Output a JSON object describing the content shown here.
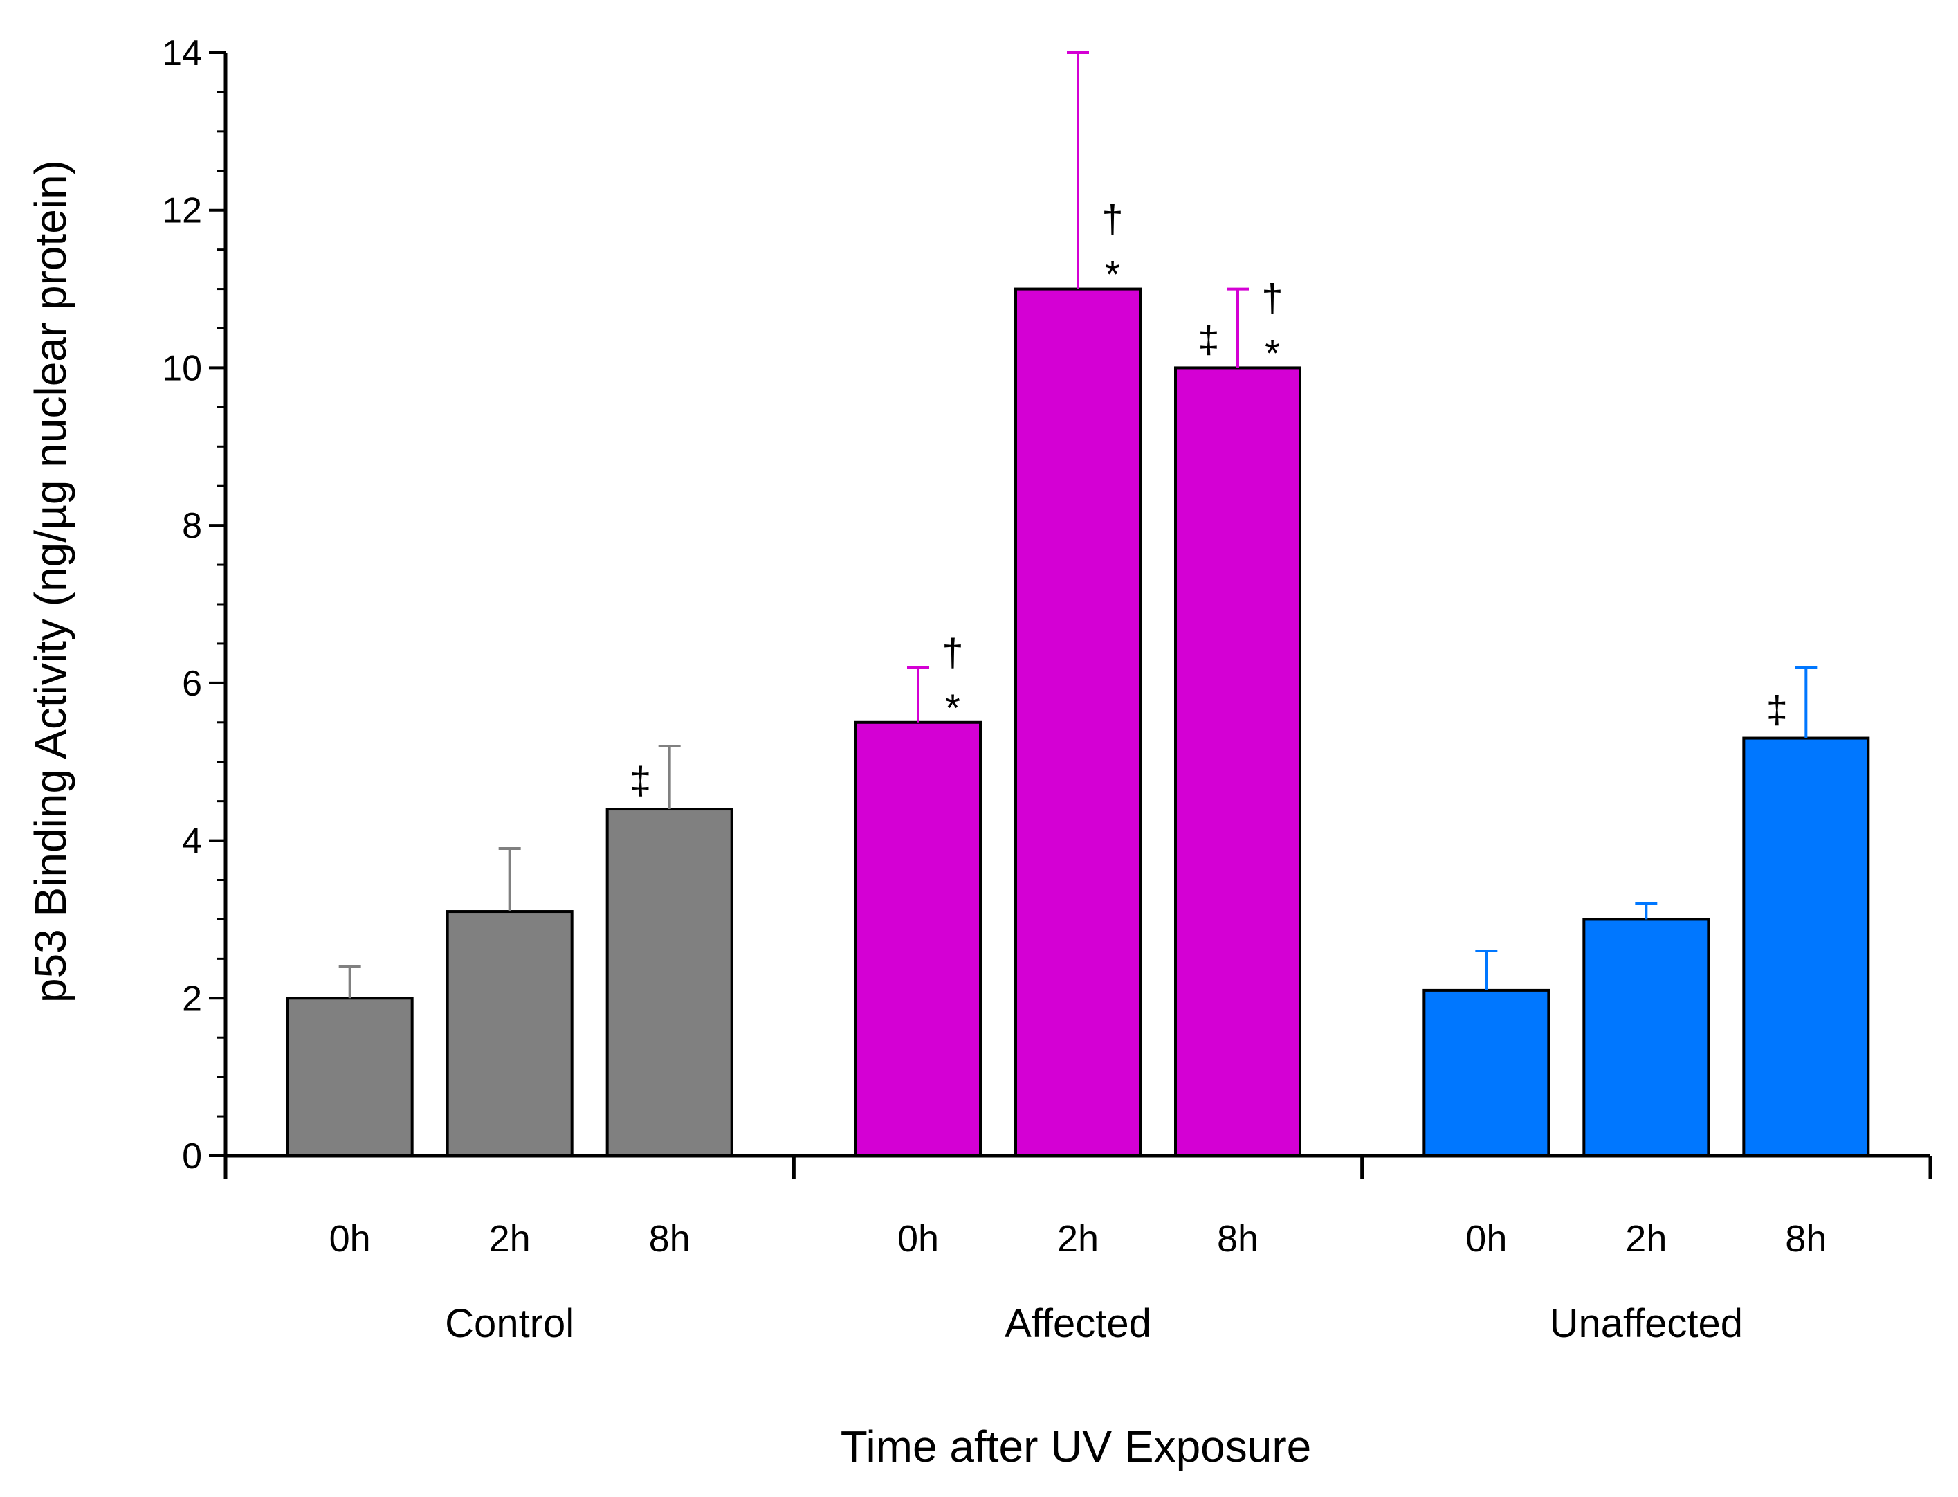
{
  "chart_data": {
    "type": "bar",
    "ylabel": "p53 Binding Activity (ng/µg nuclear protein)",
    "xlabel": "Time after UV Exposure",
    "ylim": [
      0,
      14
    ],
    "yticks": [
      0,
      2,
      4,
      6,
      8,
      10,
      12,
      14
    ],
    "ytick_labels": [
      "0",
      "2",
      "4",
      "6",
      "8",
      "10",
      "12",
      "14"
    ],
    "grid": false,
    "groups": [
      {
        "name": "Control",
        "color": "#808080",
        "bars": [
          {
            "category": "0h",
            "value": 2.0,
            "error": 0.4,
            "annotations": []
          },
          {
            "category": "2h",
            "value": 3.1,
            "error": 0.8,
            "annotations": []
          },
          {
            "category": "8h",
            "value": 4.4,
            "error": 0.8,
            "annotations": [
              "‡"
            ]
          }
        ]
      },
      {
        "name": "Affected",
        "color": "#d400d4",
        "bars": [
          {
            "category": "0h",
            "value": 5.5,
            "error": 0.7,
            "annotations": [
              "†",
              "*"
            ]
          },
          {
            "category": "2h",
            "value": 11.0,
            "error": 3.0,
            "annotations": [
              "†",
              "*"
            ]
          },
          {
            "category": "8h",
            "value": 10.0,
            "error": 1.0,
            "annotations": [
              "‡",
              "†",
              "*"
            ]
          }
        ]
      },
      {
        "name": "Unaffected",
        "color": "#0077ff",
        "bars": [
          {
            "category": "0h",
            "value": 2.1,
            "error": 0.5,
            "annotations": []
          },
          {
            "category": "2h",
            "value": 3.0,
            "error": 0.2,
            "annotations": []
          },
          {
            "category": "8h",
            "value": 5.3,
            "error": 0.9,
            "annotations": [
              "‡"
            ]
          }
        ]
      }
    ]
  }
}
